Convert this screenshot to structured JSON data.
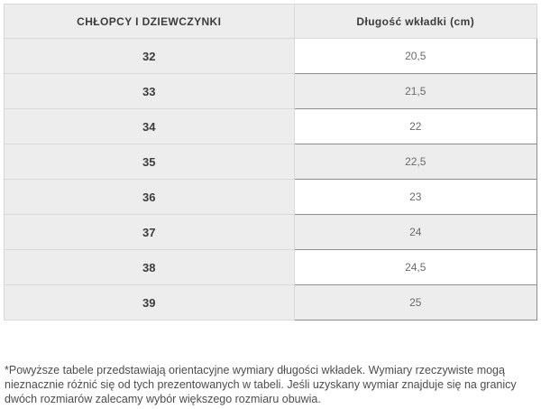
{
  "table": {
    "headers": {
      "size_column": "CHŁOPCY I DZIEWCZYNKI",
      "length_column": "Długość wkładki (cm)"
    },
    "rows": [
      {
        "size": "32",
        "length": "20,5"
      },
      {
        "size": "33",
        "length": "21,5"
      },
      {
        "size": "34",
        "length": "22"
      },
      {
        "size": "35",
        "length": "22,5"
      },
      {
        "size": "36",
        "length": "23"
      },
      {
        "size": "37",
        "length": "24"
      },
      {
        "size": "38",
        "length": "24,5"
      },
      {
        "size": "39",
        "length": "25"
      }
    ]
  },
  "footnote": "*Powyższe tabele przedstawiają orientacyjne wymiary długości wkładek. Wymiary rzeczywiste mogą nieznacznie różnić się od tych prezentowanych w tabeli. Jeśli uzyskany wymiar znajduje się na granicy dwóch rozmiarów zalecamy wybór większego rozmiaru obuwia.",
  "colors": {
    "cell_gray": "#ededed",
    "border_light": "#d9d9d9",
    "border_dark": "#8e8e8e",
    "header_text": "#3c3c3c",
    "value_text": "#6b6b6b",
    "footnote_text": "#4d4d4d"
  },
  "chart_data": {
    "type": "table",
    "columns": [
      "CHŁOPCY I DZIEWCZYNKI",
      "Długość wkładki (cm)"
    ],
    "rows": [
      [
        "32",
        "20,5"
      ],
      [
        "33",
        "21,5"
      ],
      [
        "34",
        "22"
      ],
      [
        "35",
        "22,5"
      ],
      [
        "36",
        "23"
      ],
      [
        "37",
        "24"
      ],
      [
        "38",
        "24,5"
      ],
      [
        "39",
        "25"
      ]
    ]
  }
}
